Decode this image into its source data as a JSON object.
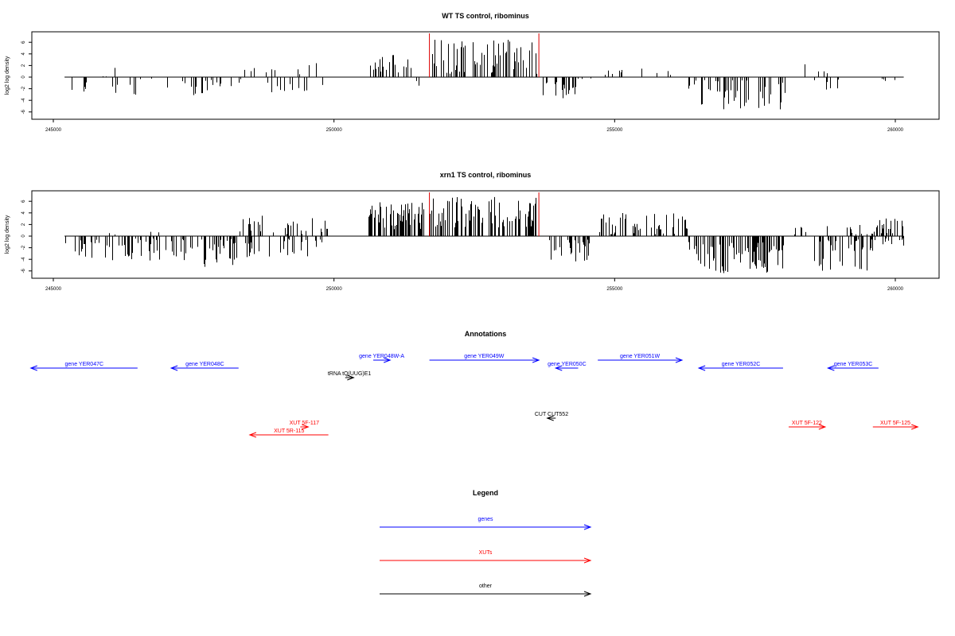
{
  "chart_data": [
    {
      "type": "bar",
      "title": "WT TS control, ribominus",
      "ylabel": "log2 log density",
      "xlabel": "",
      "xlim": [
        244200,
        260900
      ],
      "ylim": [
        -8,
        8
      ],
      "x_ticks": [
        245000,
        250000,
        255000,
        260000
      ],
      "x_tick_labels": [
        "245000",
        "250000",
        "255000",
        "260000"
      ],
      "y_ticks": [
        -6,
        -4,
        -2,
        0,
        2,
        4,
        6
      ],
      "y_tick_labels": [
        "-6",
        "-4",
        "-2",
        "0",
        "2",
        "4",
        "6"
      ],
      "baseline_range": [
        245200,
        260150
      ],
      "marker_lines": [
        251700,
        253650
      ],
      "marker_color": "#dd0000",
      "bar_color": "#000000",
      "segments": [
        {
          "from": 245250,
          "to": 245700,
          "dense": 6,
          "sign": -1,
          "min": 0.4,
          "max": 2.5
        },
        {
          "from": 245700,
          "to": 246000,
          "dense": 2,
          "sign": 1,
          "min": 0.1,
          "max": 0.3
        },
        {
          "from": 246000,
          "to": 246500,
          "dense": 6,
          "sign": -1,
          "min": 0.5,
          "max": 3.5
        },
        {
          "from": 246050,
          "to": 246150,
          "dense": 1,
          "sign": 1,
          "min": 1.5,
          "max": 1.8
        },
        {
          "from": 246500,
          "to": 246800,
          "dense": 2,
          "sign": -1,
          "min": 0.2,
          "max": 0.8
        },
        {
          "from": 247000,
          "to": 248200,
          "dense": 22,
          "sign": -1,
          "min": 0.5,
          "max": 3.3
        },
        {
          "from": 248200,
          "to": 248400,
          "dense": 2,
          "sign": -1,
          "min": 0.2,
          "max": 1.0
        },
        {
          "from": 248400,
          "to": 249000,
          "dense": 6,
          "sign": 1,
          "min": 0.3,
          "max": 2.0
        },
        {
          "from": 248800,
          "to": 249800,
          "dense": 12,
          "sign": -1,
          "min": 0.4,
          "max": 2.8
        },
        {
          "from": 249200,
          "to": 249800,
          "dense": 4,
          "sign": 1,
          "min": 0.5,
          "max": 2.4
        },
        {
          "from": 250600,
          "to": 251000,
          "dense": 14,
          "sign": 1,
          "min": 0.5,
          "max": 3.8
        },
        {
          "from": 251000,
          "to": 251400,
          "dense": 10,
          "sign": 1,
          "min": 0.8,
          "max": 4.3
        },
        {
          "from": 251400,
          "to": 251700,
          "dense": 2,
          "sign": -1,
          "min": 0.5,
          "max": 1.5
        },
        {
          "from": 251700,
          "to": 253650,
          "dense": 70,
          "sign": 1,
          "min": 0.5,
          "max": 6.5
        },
        {
          "from": 253700,
          "to": 254300,
          "dense": 22,
          "sign": -1,
          "min": 0.8,
          "max": 3.7
        },
        {
          "from": 254300,
          "to": 254700,
          "dense": 3,
          "sign": -1,
          "min": 0.2,
          "max": 0.8
        },
        {
          "from": 254800,
          "to": 256200,
          "dense": 10,
          "sign": 1,
          "min": 0.3,
          "max": 1.6
        },
        {
          "from": 256300,
          "to": 258100,
          "dense": 55,
          "sign": -1,
          "min": 0.5,
          "max": 5.8
        },
        {
          "from": 258300,
          "to": 258400,
          "dense": 1,
          "sign": 1,
          "min": 2.2,
          "max": 2.3
        },
        {
          "from": 258500,
          "to": 259300,
          "dense": 6,
          "sign": -1,
          "min": 0.4,
          "max": 2.2
        },
        {
          "from": 258600,
          "to": 259000,
          "dense": 3,
          "sign": 1,
          "min": 0.4,
          "max": 1.2
        },
        {
          "from": 259400,
          "to": 260050,
          "dense": 4,
          "sign": -1,
          "min": 0.3,
          "max": 1.2
        }
      ]
    },
    {
      "type": "bar",
      "title": "xrn1 TS control, ribominus",
      "ylabel": "log2 log density",
      "xlabel": "",
      "xlim": [
        244200,
        260900
      ],
      "ylim": [
        -8,
        8
      ],
      "x_ticks": [
        245000,
        250000,
        255000,
        260000
      ],
      "x_tick_labels": [
        "245000",
        "250000",
        "255000",
        "260000"
      ],
      "y_ticks": [
        -6,
        -4,
        -2,
        0,
        2,
        4,
        6
      ],
      "y_tick_labels": [
        "-6",
        "-4",
        "-2",
        "0",
        "2",
        "4",
        "6"
      ],
      "baseline_range": [
        245200,
        260150
      ],
      "marker_lines": [
        251700,
        253650
      ],
      "marker_color": "#dd0000",
      "bar_color": "#000000",
      "segments": [
        {
          "from": 245200,
          "to": 246900,
          "dense": 45,
          "sign": -1,
          "min": 0.4,
          "max": 4.2
        },
        {
          "from": 245200,
          "to": 246900,
          "dense": 4,
          "sign": 1,
          "min": 0.2,
          "max": 1.0
        },
        {
          "from": 247000,
          "to": 248300,
          "dense": 40,
          "sign": -1,
          "min": 0.5,
          "max": 5.5
        },
        {
          "from": 248300,
          "to": 249000,
          "dense": 18,
          "sign": 1,
          "min": 0.3,
          "max": 3.8
        },
        {
          "from": 248400,
          "to": 249900,
          "dense": 35,
          "sign": -1,
          "min": 0.4,
          "max": 4.0
        },
        {
          "from": 249000,
          "to": 249900,
          "dense": 18,
          "sign": 1,
          "min": 0.3,
          "max": 3.5
        },
        {
          "from": 250600,
          "to": 251600,
          "dense": 75,
          "sign": 1,
          "min": 1.0,
          "max": 6.0
        },
        {
          "from": 251700,
          "to": 253650,
          "dense": 90,
          "sign": 1,
          "min": 1.5,
          "max": 7.0
        },
        {
          "from": 253800,
          "to": 254600,
          "dense": 30,
          "sign": -1,
          "min": 0.6,
          "max": 4.5
        },
        {
          "from": 254700,
          "to": 256300,
          "dense": 55,
          "sign": 1,
          "min": 0.3,
          "max": 4.0
        },
        {
          "from": 256300,
          "to": 258000,
          "dense": 90,
          "sign": -1,
          "min": 1.0,
          "max": 7.0
        },
        {
          "from": 258100,
          "to": 258800,
          "dense": 6,
          "sign": 1,
          "min": 0.2,
          "max": 2.0
        },
        {
          "from": 258500,
          "to": 259700,
          "dense": 40,
          "sign": -1,
          "min": 0.5,
          "max": 6.0
        },
        {
          "from": 259100,
          "to": 259700,
          "dense": 15,
          "sign": 1,
          "min": 0.3,
          "max": 2.0
        },
        {
          "from": 259700,
          "to": 260150,
          "dense": 20,
          "sign": 1,
          "min": 0.5,
          "max": 3.2
        },
        {
          "from": 259700,
          "to": 260150,
          "dense": 10,
          "sign": -1,
          "min": 0.3,
          "max": 2.0
        }
      ]
    }
  ],
  "annotations": {
    "title": "Annotations",
    "colors": {
      "genes": "#0000ff",
      "xuts": "#ff0000",
      "other": "#000000"
    },
    "features": [
      {
        "label": "gene YER047C",
        "kind": "genes",
        "start": 244600,
        "end": 246500,
        "strand": "-",
        "level": 0
      },
      {
        "label": "gene YER048C",
        "kind": "genes",
        "start": 247100,
        "end": 248300,
        "strand": "-",
        "level": 0
      },
      {
        "label": "tRNA tQ(UUG)E1",
        "kind": "other",
        "start": 250200,
        "end": 250350,
        "strand": "+",
        "level": 1
      },
      {
        "label": "gene YER048W-A",
        "kind": "genes",
        "start": 250700,
        "end": 251000,
        "strand": "+",
        "level": -1
      },
      {
        "label": "gene YER049W",
        "kind": "genes",
        "start": 251700,
        "end": 253650,
        "strand": "+",
        "level": -1
      },
      {
        "label": "gene YER050C",
        "kind": "genes",
        "start": 253950,
        "end": 254350,
        "strand": "-",
        "level": 0
      },
      {
        "label": "gene YER051W",
        "kind": "genes",
        "start": 254700,
        "end": 256200,
        "strand": "+",
        "level": -1
      },
      {
        "label": "gene YER052C",
        "kind": "genes",
        "start": 256500,
        "end": 258000,
        "strand": "-",
        "level": 0
      },
      {
        "label": "gene YER053C",
        "kind": "genes",
        "start": 258800,
        "end": 259700,
        "strand": "-",
        "level": 0
      },
      {
        "label": "CUT CUT552",
        "kind": "other",
        "start": 253800,
        "end": 253950,
        "strand": "-",
        "level": 3
      },
      {
        "label": "XUT 5F-117",
        "kind": "xuts",
        "start": 249400,
        "end": 249450,
        "strand": "+",
        "level": 4
      },
      {
        "label": "XUT 5R-115",
        "kind": "xuts",
        "start": 248500,
        "end": 249900,
        "strand": "-",
        "level": 5
      },
      {
        "label": "XUT 5F-122",
        "kind": "xuts",
        "start": 258100,
        "end": 258750,
        "strand": "+",
        "level": 4
      },
      {
        "label": "XUT 5F-125",
        "kind": "xuts",
        "start": 259600,
        "end": 260400,
        "strand": "+",
        "level": 4
      }
    ]
  },
  "legend": {
    "title": "Legend",
    "items": [
      {
        "label": "genes",
        "color": "#0000ff"
      },
      {
        "label": "XUTs",
        "color": "#ff0000"
      },
      {
        "label": "other",
        "color": "#000000"
      }
    ]
  }
}
